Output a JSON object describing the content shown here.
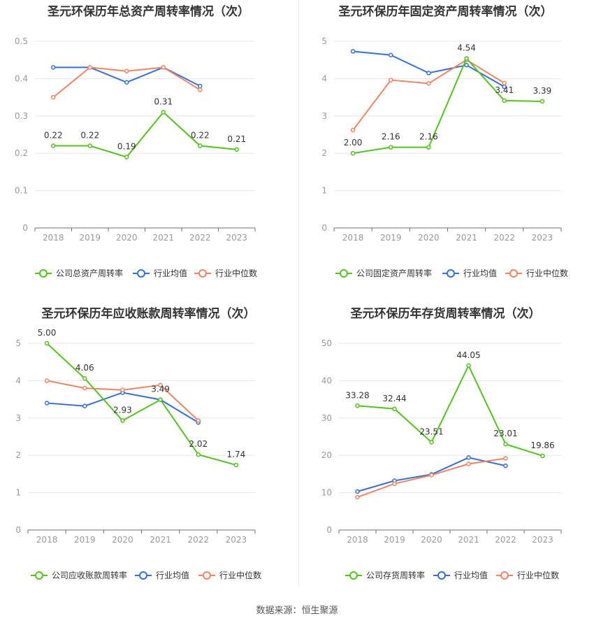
{
  "source": "数据来源：恒生聚源",
  "colors": {
    "company": "#52c41a",
    "avg": "#3370dc",
    "median": "#f4845f"
  },
  "chart_data": [
    {
      "type": "line",
      "title": "圣元环保历年总资产周转率情况（次）",
      "categories": [
        "2018",
        "2019",
        "2020",
        "2021",
        "2022",
        "2023"
      ],
      "ylim": [
        0,
        0.5
      ],
      "yticks": [
        "0",
        "0.1",
        "0.2",
        "0.3",
        "0.4",
        "0.5"
      ],
      "series": [
        {
          "name": "公司总资产周转率",
          "role": "company",
          "values": [
            0.22,
            0.22,
            0.19,
            0.31,
            0.22,
            0.21
          ],
          "labels": [
            "0.22",
            "0.22",
            "0.19",
            "0.31",
            "0.22",
            "0.21"
          ]
        },
        {
          "name": "行业均值",
          "role": "avg",
          "values": [
            0.43,
            0.43,
            0.39,
            0.43,
            0.38,
            null
          ]
        },
        {
          "name": "行业中位数",
          "role": "median",
          "values": [
            0.35,
            0.43,
            0.42,
            0.43,
            0.37,
            null
          ]
        }
      ]
    },
    {
      "type": "line",
      "title": "圣元环保历年固定资产周转率情况（次）",
      "categories": [
        "2018",
        "2019",
        "2020",
        "2021",
        "2022",
        "2023"
      ],
      "ylim": [
        0,
        5
      ],
      "yticks": [
        "0",
        "1",
        "2",
        "3",
        "4",
        "5"
      ],
      "series": [
        {
          "name": "公司固定资产周转率",
          "role": "company",
          "values": [
            2.0,
            2.16,
            2.16,
            4.54,
            3.41,
            3.39
          ],
          "labels": [
            "2.00",
            "2.16",
            "2.16",
            "4.54",
            "3.41",
            "3.39"
          ]
        },
        {
          "name": "行业均值",
          "role": "avg",
          "values": [
            4.73,
            4.63,
            4.15,
            4.36,
            3.78,
            null
          ]
        },
        {
          "name": "行业中位数",
          "role": "median",
          "values": [
            2.62,
            3.96,
            3.87,
            4.5,
            3.88,
            null
          ]
        }
      ]
    },
    {
      "type": "line",
      "title": "圣元环保历年应收账款周转率情况（次）",
      "categories": [
        "2018",
        "2019",
        "2020",
        "2021",
        "2022",
        "2023"
      ],
      "ylim": [
        0,
        5
      ],
      "yticks": [
        "0",
        "1",
        "2",
        "3",
        "4",
        "5"
      ],
      "series": [
        {
          "name": "公司应收账款周转率",
          "role": "company",
          "values": [
            5.0,
            4.06,
            2.93,
            3.49,
            2.02,
            1.74
          ],
          "labels": [
            "5.00",
            "4.06",
            "2.93",
            "3.49",
            "2.02",
            "1.74"
          ]
        },
        {
          "name": "行业均值",
          "role": "avg",
          "values": [
            3.4,
            3.32,
            3.68,
            3.49,
            2.88,
            null
          ]
        },
        {
          "name": "行业中位数",
          "role": "median",
          "values": [
            4.0,
            3.8,
            3.75,
            3.88,
            2.93,
            null
          ]
        }
      ]
    },
    {
      "type": "line",
      "title": "圣元环保历年存货周转率情况（次）",
      "categories": [
        "2018",
        "2019",
        "2020",
        "2021",
        "2022",
        "2023"
      ],
      "ylim": [
        0,
        50
      ],
      "yticks": [
        "0",
        "10",
        "20",
        "30",
        "40",
        "50"
      ],
      "series": [
        {
          "name": "公司存货周转率",
          "role": "company",
          "values": [
            33.28,
            32.44,
            23.51,
            44.05,
            23.01,
            19.86
          ],
          "labels": [
            "33.28",
            "32.44",
            "23.51",
            "44.05",
            "23.01",
            "19.86"
          ]
        },
        {
          "name": "行业均值",
          "role": "avg",
          "values": [
            10.3,
            13.2,
            14.9,
            19.4,
            17.2,
            null
          ]
        },
        {
          "name": "行业中位数",
          "role": "median",
          "values": [
            8.8,
            12.4,
            14.7,
            17.7,
            19.2,
            null
          ]
        }
      ]
    }
  ]
}
